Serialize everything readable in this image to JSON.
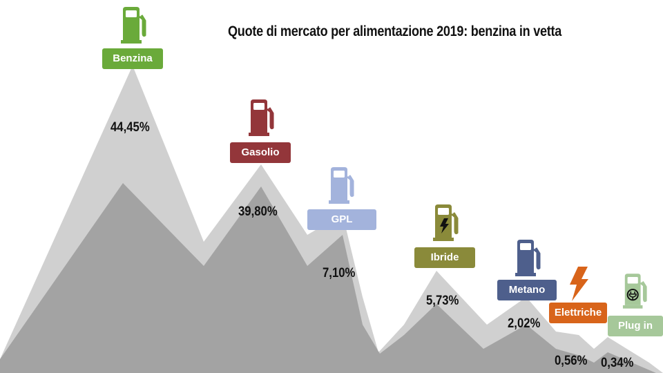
{
  "title": "Quote di mercato per alimentazione 2019: benzina in vetta",
  "chart_data": {
    "type": "bar",
    "title": "Quote di mercato per alimentazione 2019: benzina in vetta",
    "categories": [
      "Benzina",
      "Gasolio",
      "GPL",
      "Ibride",
      "Metano",
      "Elettriche",
      "Plug in"
    ],
    "values": [
      44.45,
      39.8,
      7.1,
      5.73,
      2.02,
      0.56,
      0.34
    ],
    "value_labels": [
      "44,45%",
      "39,80%",
      "7,10%",
      "5,73%",
      "2,02%",
      "0,56%",
      "0,34%"
    ],
    "unit": "%",
    "colors": {
      "Benzina": "#6aaa3a",
      "Gasolio": "#93363a",
      "GPL": "#a3b3dc",
      "Ibride": "#8a8a3a",
      "Metano": "#4e5f8c",
      "Elettriche": "#d8641a",
      "Plug in": "#a6c89a"
    },
    "icons": [
      "fuel-pump",
      "fuel-pump",
      "fuel-pump",
      "fuel-pump-bolt",
      "fuel-pump",
      "lightning-bolt",
      "fuel-pump-plug"
    ],
    "mountain_color": "#a3a3a3",
    "legend": "none",
    "grid": false
  }
}
